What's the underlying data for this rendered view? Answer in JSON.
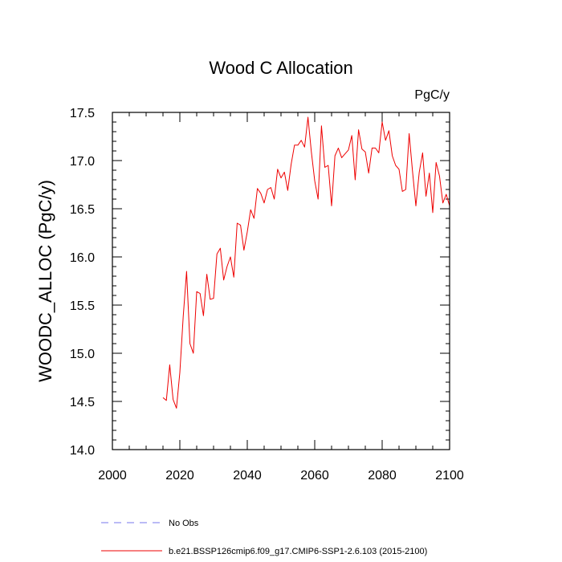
{
  "chart_data": {
    "type": "line",
    "title": "Wood C Allocation",
    "units_label": "PgC/y",
    "xlabel": "",
    "ylabel": "WOODC_ALLOC  (PgC/y)",
    "xlim": [
      2000,
      2100
    ],
    "ylim": [
      14.0,
      17.5
    ],
    "x_ticks": [
      2000,
      2020,
      2040,
      2060,
      2080,
      2100
    ],
    "x_tick_labels": [
      "2000",
      "2020",
      "2040",
      "2060",
      "2080",
      "2100"
    ],
    "x_minor_step": 5,
    "y_ticks": [
      14.0,
      14.5,
      15.0,
      15.5,
      16.0,
      16.5,
      17.0,
      17.5
    ],
    "y_tick_labels": [
      "14.0",
      "14.5",
      "15.0",
      "15.5",
      "16.0",
      "16.5",
      "17.0",
      "17.5"
    ],
    "y_minor_step": 0.1,
    "grid": false,
    "legend_position": "bottom-left, below plot",
    "series": [
      {
        "name": "No Obs",
        "color": "#7777ee",
        "style": "dashed",
        "values": []
      },
      {
        "name": "b.e21.BSSP126cmip6.f09_g17.CMIP6-SSP1-2.6.103 (2015-2100)",
        "color": "#ee0000",
        "style": "solid",
        "x": [
          2015,
          2016,
          2017,
          2018,
          2019,
          2020,
          2021,
          2022,
          2023,
          2024,
          2025,
          2026,
          2027,
          2028,
          2029,
          2030,
          2031,
          2032,
          2033,
          2034,
          2035,
          2036,
          2037,
          2038,
          2039,
          2040,
          2041,
          2042,
          2043,
          2044,
          2045,
          2046,
          2047,
          2048,
          2049,
          2050,
          2051,
          2052,
          2053,
          2054,
          2055,
          2056,
          2057,
          2058,
          2059,
          2060,
          2061,
          2062,
          2063,
          2064,
          2065,
          2066,
          2067,
          2068,
          2069,
          2070,
          2071,
          2072,
          2073,
          2074,
          2075,
          2076,
          2077,
          2078,
          2079,
          2080,
          2081,
          2082,
          2083,
          2084,
          2085,
          2086,
          2087,
          2088,
          2089,
          2090,
          2091,
          2092,
          2093,
          2094,
          2095,
          2096,
          2097,
          2098,
          2099,
          2100
        ],
        "values": [
          14.54,
          14.51,
          14.88,
          14.52,
          14.43,
          14.8,
          15.38,
          15.85,
          15.1,
          15.0,
          15.64,
          15.62,
          15.39,
          15.82,
          15.56,
          15.57,
          16.03,
          16.09,
          15.76,
          15.9,
          16.0,
          15.79,
          16.35,
          16.33,
          16.07,
          16.26,
          16.49,
          16.4,
          16.71,
          16.66,
          16.56,
          16.7,
          16.72,
          16.6,
          16.91,
          16.82,
          16.88,
          16.69,
          16.96,
          17.16,
          17.16,
          17.21,
          17.14,
          17.45,
          17.09,
          16.79,
          16.6,
          17.36,
          16.93,
          16.95,
          16.53,
          17.05,
          17.13,
          17.03,
          17.07,
          17.11,
          17.26,
          16.8,
          17.32,
          17.12,
          17.09,
          16.87,
          17.13,
          17.13,
          17.08,
          17.4,
          17.21,
          17.31,
          17.05,
          16.95,
          16.91,
          16.68,
          16.7,
          17.28,
          16.89,
          16.53,
          16.88,
          17.08,
          16.63,
          16.87,
          16.46,
          16.98,
          16.84,
          16.56,
          16.65,
          16.53
        ]
      }
    ]
  }
}
